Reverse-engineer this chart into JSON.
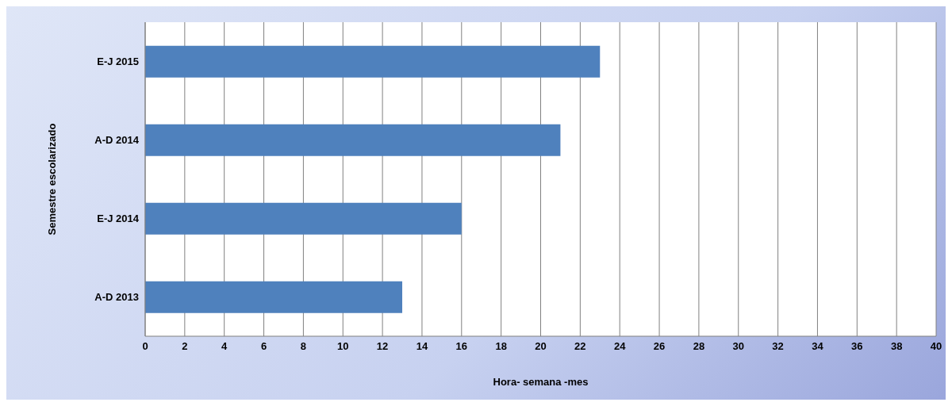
{
  "chart_data": {
    "type": "bar",
    "orientation": "horizontal",
    "categories": [
      "E-J 2015",
      "A-D 2014",
      "E-J 2014",
      "A-D 2013"
    ],
    "values": [
      23,
      21,
      16,
      13
    ],
    "color": "#4f81bd",
    "xlabel": "Hora- semana -mes",
    "ylabel": "Semestre escolarizado",
    "xlim": [
      0,
      40
    ],
    "xticks": [
      0,
      2,
      4,
      6,
      8,
      10,
      12,
      14,
      16,
      18,
      20,
      22,
      24,
      26,
      28,
      30,
      32,
      34,
      36,
      38,
      40
    ],
    "grid": "x",
    "legend": false
  }
}
